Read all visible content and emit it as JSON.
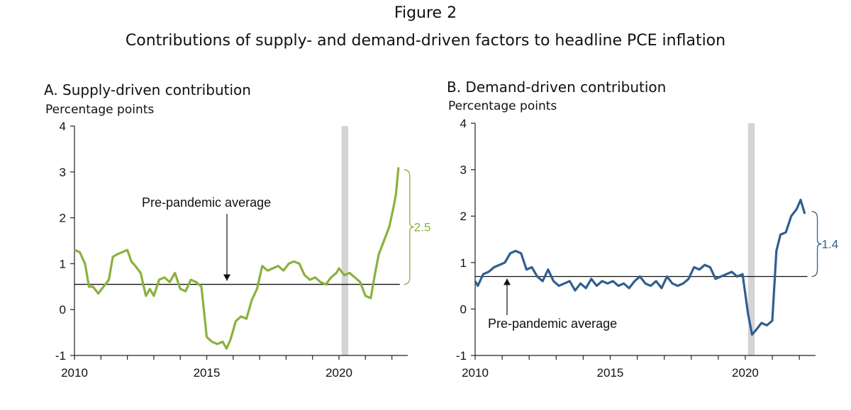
{
  "figure": {
    "label": "Figure 2",
    "subtitle": "Contributions of supply- and demand-driven factors to headline PCE inflation"
  },
  "colors": {
    "supply": "#8bb13d",
    "demand": "#2f5f8f",
    "recession": "#d4d4d4",
    "axis": "#222222"
  },
  "chart_data": [
    {
      "type": "line",
      "id": "panelA",
      "title": "A. Supply-driven contribution",
      "ylabel": "Percentage points",
      "xlim": [
        2010,
        2022.6
      ],
      "ylim": [
        -1,
        4
      ],
      "xticks": [
        2010,
        2015,
        2020
      ],
      "yticks": [
        -1,
        0,
        1,
        2,
        3,
        4
      ],
      "recession_band": [
        2020.1,
        2020.35
      ],
      "average": {
        "value": 0.55,
        "label": "Pre-pandemic average"
      },
      "brace": {
        "from": 0.55,
        "to": 3.05,
        "label": "2.5"
      },
      "series": [
        {
          "color": "#8bb13d",
          "x": [
            2010.0,
            2010.2,
            2010.4,
            2010.55,
            2010.7,
            2010.9,
            2011.1,
            2011.3,
            2011.45,
            2011.6,
            2011.8,
            2012.0,
            2012.15,
            2012.3,
            2012.5,
            2012.7,
            2012.85,
            2013.0,
            2013.2,
            2013.4,
            2013.6,
            2013.8,
            2014.0,
            2014.2,
            2014.4,
            2014.6,
            2014.8,
            2015.0,
            2015.2,
            2015.4,
            2015.6,
            2015.75,
            2015.9,
            2016.1,
            2016.3,
            2016.5,
            2016.7,
            2016.9,
            2017.1,
            2017.3,
            2017.5,
            2017.7,
            2017.9,
            2018.1,
            2018.3,
            2018.5,
            2018.7,
            2018.9,
            2019.1,
            2019.3,
            2019.5,
            2019.7,
            2019.9,
            2020.0,
            2020.2,
            2020.4,
            2020.6,
            2020.8,
            2021.0,
            2021.2,
            2021.35,
            2021.5,
            2021.7,
            2021.9,
            2022.05,
            2022.15,
            2022.25
          ],
          "values": [
            1.3,
            1.25,
            1.0,
            0.5,
            0.5,
            0.35,
            0.5,
            0.65,
            1.15,
            1.2,
            1.25,
            1.3,
            1.05,
            0.95,
            0.8,
            0.3,
            0.45,
            0.3,
            0.65,
            0.7,
            0.6,
            0.8,
            0.45,
            0.4,
            0.65,
            0.6,
            0.5,
            -0.6,
            -0.7,
            -0.75,
            -0.7,
            -0.85,
            -0.65,
            -0.25,
            -0.15,
            -0.2,
            0.2,
            0.45,
            0.95,
            0.85,
            0.9,
            0.95,
            0.85,
            1.0,
            1.05,
            1.0,
            0.75,
            0.65,
            0.7,
            0.6,
            0.55,
            0.7,
            0.8,
            0.9,
            0.75,
            0.8,
            0.7,
            0.6,
            0.3,
            0.25,
            0.75,
            1.2,
            1.5,
            1.8,
            2.2,
            2.5,
            3.1
          ]
        }
      ]
    },
    {
      "type": "line",
      "id": "panelB",
      "title": "B. Demand-driven contribution",
      "ylabel": "Percentage points",
      "xlim": [
        2010,
        2022.6
      ],
      "ylim": [
        -1,
        4
      ],
      "xticks": [
        2010,
        2015,
        2020
      ],
      "yticks": [
        -1,
        0,
        1,
        2,
        3,
        4
      ],
      "recession_band": [
        2020.1,
        2020.35
      ],
      "average": {
        "value": 0.7,
        "label": "Pre-pandemic average"
      },
      "brace": {
        "from": 0.7,
        "to": 2.1,
        "label": "1.4"
      },
      "series": [
        {
          "color": "#2f5f8f",
          "x": [
            2010.0,
            2010.1,
            2010.3,
            2010.5,
            2010.7,
            2010.9,
            2011.1,
            2011.3,
            2011.5,
            2011.7,
            2011.9,
            2012.1,
            2012.3,
            2012.5,
            2012.7,
            2012.9,
            2013.1,
            2013.3,
            2013.5,
            2013.7,
            2013.9,
            2014.1,
            2014.3,
            2014.5,
            2014.7,
            2014.9,
            2015.1,
            2015.3,
            2015.5,
            2015.7,
            2015.9,
            2016.1,
            2016.3,
            2016.5,
            2016.7,
            2016.9,
            2017.1,
            2017.3,
            2017.5,
            2017.7,
            2017.9,
            2018.1,
            2018.3,
            2018.5,
            2018.7,
            2018.9,
            2019.1,
            2019.3,
            2019.5,
            2019.7,
            2019.9,
            2020.1,
            2020.25,
            2020.4,
            2020.6,
            2020.8,
            2021.0,
            2021.15,
            2021.3,
            2021.5,
            2021.7,
            2021.9,
            2022.05,
            2022.2
          ],
          "values": [
            0.6,
            0.5,
            0.75,
            0.8,
            0.9,
            0.95,
            1.0,
            1.2,
            1.25,
            1.2,
            0.85,
            0.9,
            0.7,
            0.6,
            0.85,
            0.6,
            0.5,
            0.55,
            0.6,
            0.4,
            0.55,
            0.45,
            0.65,
            0.5,
            0.6,
            0.55,
            0.6,
            0.5,
            0.55,
            0.45,
            0.6,
            0.7,
            0.55,
            0.5,
            0.6,
            0.45,
            0.7,
            0.55,
            0.5,
            0.55,
            0.65,
            0.9,
            0.85,
            0.95,
            0.9,
            0.65,
            0.7,
            0.75,
            0.8,
            0.7,
            0.75,
            -0.1,
            -0.55,
            -0.45,
            -0.3,
            -0.35,
            -0.25,
            1.25,
            1.6,
            1.65,
            2.0,
            2.15,
            2.35,
            2.05
          ]
        }
      ]
    }
  ]
}
